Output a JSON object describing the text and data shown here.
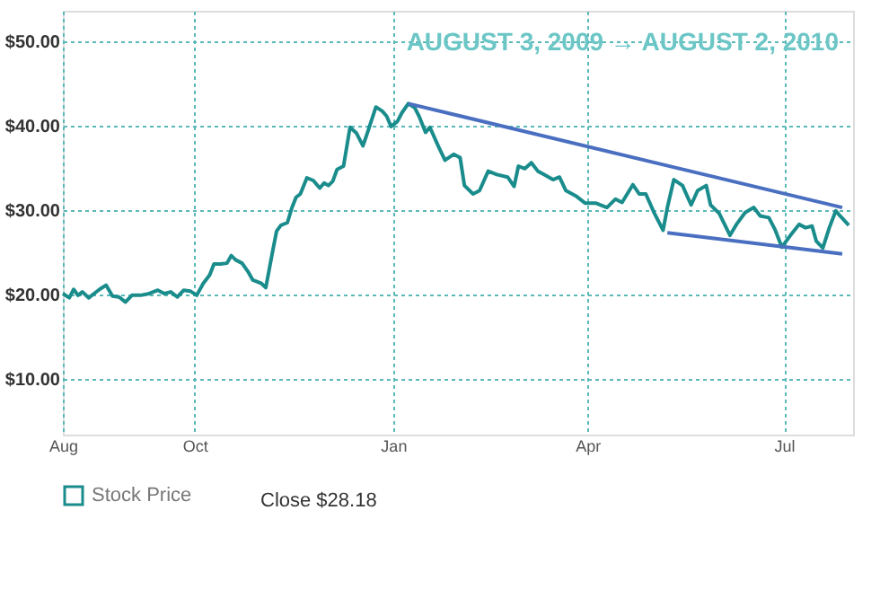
{
  "chart_data": {
    "type": "line",
    "annotations": [
      "AUGUST 3, 2009 → AUGUST 2, 2010",
      "Close $28.18"
    ],
    "series": [
      {
        "name": "Stock Price",
        "color": "#1a8c8c",
        "x": [
          "2009-08-01",
          "2009-08-04",
          "2009-08-06",
          "2009-08-08",
          "2009-08-10",
          "2009-08-13",
          "2009-08-18",
          "2009-08-21",
          "2009-08-24",
          "2009-08-27",
          "2009-08-30",
          "2009-09-02",
          "2009-09-06",
          "2009-09-10",
          "2009-09-14",
          "2009-09-17",
          "2009-09-20",
          "2009-09-23",
          "2009-09-26",
          "2009-09-29",
          "2009-10-02",
          "2009-10-05",
          "2009-10-08",
          "2009-10-10",
          "2009-10-13",
          "2009-10-16",
          "2009-10-18",
          "2009-10-20",
          "2009-10-23",
          "2009-10-26",
          "2009-10-28",
          "2009-11-01",
          "2009-11-03",
          "2009-11-06",
          "2009-11-08",
          "2009-11-10",
          "2009-11-13",
          "2009-11-15",
          "2009-11-17",
          "2009-11-19",
          "2009-11-22",
          "2009-11-25",
          "2009-11-28",
          "2009-11-30",
          "2009-12-02",
          "2009-12-04",
          "2009-12-06",
          "2009-12-09",
          "2009-12-12",
          "2009-12-15",
          "2009-12-18",
          "2009-12-20",
          "2009-12-24",
          "2009-12-27",
          "2009-12-29",
          "2009-12-31",
          "2010-01-03",
          "2010-01-05",
          "2010-01-08",
          "2010-01-11",
          "2010-01-13",
          "2010-01-16",
          "2010-01-18",
          "2010-01-22",
          "2010-01-25",
          "2010-01-29",
          "2010-02-01",
          "2010-02-03",
          "2010-02-07",
          "2010-02-10",
          "2010-02-14",
          "2010-02-18",
          "2010-02-23",
          "2010-02-26",
          "2010-02-28",
          "2010-03-03",
          "2010-03-06",
          "2010-03-09",
          "2010-03-12",
          "2010-03-16",
          "2010-03-19",
          "2010-03-22",
          "2010-03-27",
          "2010-03-31",
          "2010-04-05",
          "2010-04-10",
          "2010-04-14",
          "2010-04-17",
          "2010-04-22",
          "2010-04-25",
          "2010-04-28",
          "2010-05-02",
          "2010-05-06",
          "2010-05-08",
          "2010-05-11",
          "2010-05-15",
          "2010-05-19",
          "2010-05-22",
          "2010-05-26",
          "2010-05-28",
          "2010-06-01",
          "2010-06-06",
          "2010-06-09",
          "2010-06-13",
          "2010-06-17",
          "2010-06-20",
          "2010-06-24",
          "2010-06-27",
          "2010-06-30",
          "2010-07-04",
          "2010-07-08",
          "2010-07-11",
          "2010-07-14",
          "2010-07-16",
          "2010-07-19",
          "2010-07-22",
          "2010-07-25",
          "2010-07-27",
          "2010-07-31"
        ],
        "values": [
          20.1,
          19.6,
          20.6,
          19.9,
          20.3,
          19.6,
          20.6,
          21.1,
          19.8,
          19.7,
          19.1,
          19.9,
          19.9,
          20.1,
          20.5,
          20.1,
          20.3,
          19.7,
          20.5,
          20.4,
          19.9,
          21.3,
          22.3,
          23.6,
          23.6,
          23.7,
          24.6,
          24.1,
          23.7,
          22.6,
          21.7,
          21.3,
          20.8,
          24.9,
          27.5,
          28.2,
          28.5,
          30.2,
          31.5,
          31.9,
          33.8,
          33.5,
          32.6,
          33.2,
          32.9,
          33.4,
          34.8,
          35.2,
          39.8,
          39.1,
          37.6,
          39.1,
          42.2,
          41.7,
          41.1,
          39.9,
          40.5,
          41.5,
          42.6,
          42.1,
          41.1,
          39.2,
          39.8,
          37.5,
          35.9,
          36.6,
          36.2,
          32.9,
          31.9,
          32.3,
          34.6,
          34.2,
          33.9,
          32.8,
          35.2,
          34.9,
          35.6,
          34.6,
          34.2,
          33.6,
          33.9,
          32.3,
          31.6,
          30.8,
          30.8,
          30.3,
          31.3,
          30.9,
          33.0,
          31.9,
          31.9,
          29.6,
          27.6,
          30.3,
          33.6,
          32.9,
          30.6,
          32.3,
          32.9,
          30.6,
          29.6,
          27.0,
          28.3,
          29.7,
          30.3,
          29.3,
          29.1,
          27.6,
          25.6,
          27.0,
          28.3,
          27.9,
          28.1,
          26.3,
          25.5,
          27.9,
          29.9,
          29.3,
          28.2
        ]
      },
      {
        "type": "line",
        "color": "#4a6fc0",
        "x": [
          "2010-01-08",
          "2010-07-28"
        ],
        "values": [
          42.6,
          30.3
        ]
      },
      {
        "type": "line",
        "color": "#4a6fc0",
        "x": [
          "2010-05-08",
          "2010-07-28"
        ],
        "values": [
          27.3,
          24.8
        ]
      }
    ],
    "xlim": [
      "2009-08-01",
      "2010-08-02"
    ],
    "xticks": [
      {
        "value": "2009-08-01",
        "label": "Aug"
      },
      {
        "value": "2009-10-01",
        "label": "Oct"
      },
      {
        "value": "2010-01-01",
        "label": "Jan"
      },
      {
        "value": "2010-04-01",
        "label": "Apr"
      },
      {
        "value": "2010-07-01",
        "label": "Jul"
      }
    ],
    "ylim": [
      3.4,
      53.6
    ],
    "yticks": [
      {
        "value": 10,
        "label": "$10.00"
      },
      {
        "value": 20,
        "label": "$20.00"
      },
      {
        "value": 30,
        "label": "$30.00"
      },
      {
        "value": 40,
        "label": "$40.00"
      },
      {
        "value": 50,
        "label": "$50.00"
      }
    ],
    "grid": true,
    "legend": "bottom",
    "line_style": "solid"
  }
}
